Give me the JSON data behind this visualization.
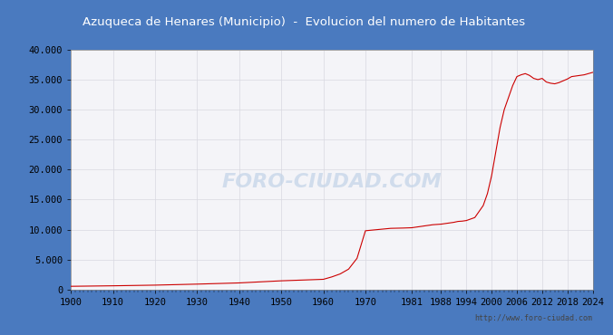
{
  "title": "Azuqueca de Henares (Municipio)  -  Evolucion del numero de Habitantes",
  "title_bg": "#4a7abf",
  "title_color": "white",
  "footer_text": "http://www.foro-ciudad.com",
  "watermark": "FORO-CIUDAD.COM",
  "line_color": "#cc0000",
  "bg_color": "#ffffff",
  "plot_bg": "#f4f4f8",
  "grid_color": "#d8d8e0",
  "border_color": "#4a7abf",
  "years": [
    1900,
    1910,
    1920,
    1930,
    1940,
    1950,
    1960,
    1962,
    1964,
    1966,
    1968,
    1970,
    1973,
    1976,
    1979,
    1981,
    1983,
    1985,
    1986,
    1987,
    1988,
    1989,
    1990,
    1991,
    1992,
    1993,
    1994,
    1996,
    1998,
    1999,
    2000,
    2001,
    2002,
    2003,
    2004,
    2005,
    2006,
    2007,
    2008,
    2009,
    2010,
    2011,
    2012,
    2013,
    2014,
    2015,
    2016,
    2017,
    2018,
    2019,
    2020,
    2021,
    2022,
    2023,
    2024
  ],
  "population": [
    535,
    620,
    730,
    900,
    1100,
    1450,
    1700,
    2100,
    2600,
    3400,
    5200,
    9800,
    10000,
    10200,
    10250,
    10300,
    10500,
    10700,
    10800,
    10850,
    10900,
    11000,
    11100,
    11200,
    11350,
    11400,
    11500,
    12000,
    14000,
    16000,
    19000,
    23000,
    27000,
    30000,
    32000,
    34000,
    35500,
    35800,
    36000,
    35700,
    35200,
    35000,
    35200,
    34600,
    34400,
    34300,
    34500,
    34800,
    35100,
    35500,
    35600,
    35700,
    35800,
    36000,
    36200
  ],
  "xtick_labels": [
    "1900",
    "1910",
    "1920",
    "1930",
    "1940",
    "1950",
    "1960",
    "1970",
    "1981",
    "1988",
    "1994",
    "2000",
    "2006",
    "2012",
    "2018",
    "2024"
  ],
  "xtick_positions": [
    1900,
    1910,
    1920,
    1930,
    1940,
    1950,
    1960,
    1970,
    1981,
    1988,
    1994,
    2000,
    2006,
    2012,
    2018,
    2024
  ],
  "ylim": [
    0,
    40000
  ],
  "ytick_vals": [
    0,
    5000,
    10000,
    15000,
    20000,
    25000,
    30000,
    35000,
    40000
  ],
  "ytick_labels": [
    "0",
    "5.000",
    "10.000",
    "15.000",
    "20.000",
    "25.000",
    "30.000",
    "35.000",
    "40.000"
  ],
  "title_fontsize": 9.5,
  "tick_fontsize": 7.5
}
